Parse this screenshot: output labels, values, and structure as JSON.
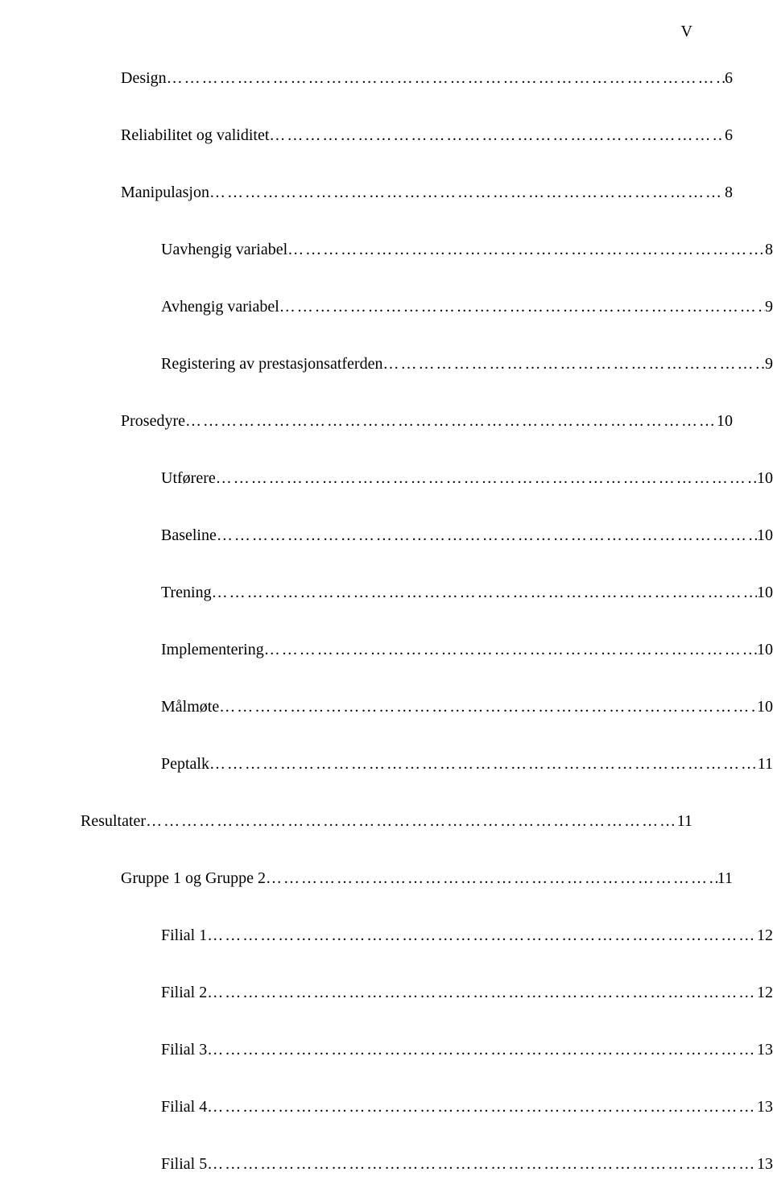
{
  "page_number": "V",
  "font_family": "Times New Roman",
  "font_size_pt": 20,
  "text_color": "#000000",
  "background_color": "#ffffff",
  "entries": [
    {
      "label": "Design ",
      "page": " 6",
      "indent": 1
    },
    {
      "label": "Reliabilitet og validitet ",
      "page": " 6",
      "indent": 1
    },
    {
      "label": "Manipulasjon ",
      "page": " 8",
      "indent": 1
    },
    {
      "label": "Uavhengig variabel ",
      "page": " 8",
      "indent": 2
    },
    {
      "label": "Avhengig variabel ",
      "page": " 9",
      "indent": 2
    },
    {
      "label": "Registering av prestasjonsatferden ",
      "page": " 9",
      "indent": 2
    },
    {
      "label": "Prosedyre ",
      "page": " 10",
      "indent": 1
    },
    {
      "label": "Utførere ",
      "page": " 10",
      "indent": 2
    },
    {
      "label": "Baseline ",
      "page": " 10",
      "indent": 2
    },
    {
      "label": "Trening ",
      "page": " 10",
      "indent": 2
    },
    {
      "label": "Implementering ",
      "page": " 10",
      "indent": 2
    },
    {
      "label": "Målmøte ",
      "page": " 10",
      "indent": 2
    },
    {
      "label": "Peptalk ",
      "page": " 11",
      "indent": 2
    },
    {
      "label": "Resultater ",
      "page": " 11",
      "indent": 0
    },
    {
      "label": "Gruppe 1 og Gruppe 2 ",
      "page": " 11",
      "indent": 1
    },
    {
      "label": "Filial 1",
      "page": " 12",
      "indent": 2
    },
    {
      "label": "Filial 2 ",
      "page": "12",
      "indent": 2
    },
    {
      "label": "Filial 3 ",
      "page": " 13",
      "indent": 2
    },
    {
      "label": "Filial 4 ",
      "page": " 13",
      "indent": 2
    },
    {
      "label": "Filial 5 ",
      "page": " 13",
      "indent": 2
    }
  ]
}
